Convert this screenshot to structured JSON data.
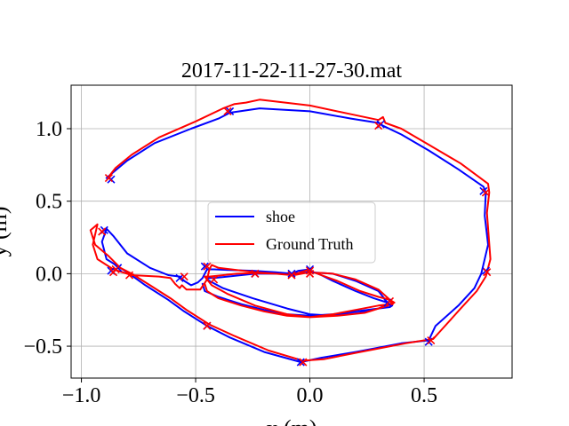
{
  "chart_data": {
    "type": "line",
    "title": "2017-11-22-11-27-30.mat",
    "xlabel": "x (m)",
    "ylabel": "y (m)",
    "xlim": [
      -1.045,
      0.885
    ],
    "ylim": [
      -0.72,
      1.3
    ],
    "grid": true,
    "legend_position": "center",
    "x_ticks": [
      -1.0,
      -0.5,
      0.0,
      0.5
    ],
    "x_tick_labels": [
      "−1.0",
      "−0.5",
      "0.0",
      "0.5"
    ],
    "y_ticks": [
      -0.5,
      0.0,
      0.5,
      1.0
    ],
    "y_tick_labels": [
      "−0.5",
      "0.0",
      "0.5",
      "1.0"
    ],
    "series": [
      {
        "name": "shoe",
        "color": "#0000ff",
        "x": [
          -0.89,
          -0.86,
          -0.8,
          -0.68,
          -0.52,
          -0.4,
          -0.35,
          -0.22,
          0.0,
          0.18,
          0.3,
          0.32,
          0.4,
          0.52,
          0.65,
          0.76,
          0.77,
          0.765,
          0.78,
          0.75,
          0.72,
          0.65,
          0.55,
          0.52,
          0.4,
          0.2,
          0.05,
          -0.04,
          -0.2,
          -0.35,
          -0.45,
          -0.55,
          -0.62,
          -0.72,
          -0.8,
          -0.84,
          -0.89,
          -0.91,
          -0.89,
          -0.86,
          -0.8,
          -0.7,
          -0.62,
          -0.57,
          -0.55,
          -0.52,
          -0.49,
          -0.47,
          -0.46,
          -0.45,
          -0.42,
          -0.35,
          -0.25,
          -0.15,
          -0.08,
          0.0,
          0.1,
          0.2,
          0.3,
          0.34,
          0.33,
          0.3,
          0.22,
          0.1,
          0.0,
          -0.1,
          -0.25,
          -0.38,
          -0.44,
          -0.455,
          -0.42,
          -0.3,
          -0.24,
          -0.15,
          -0.08,
          -0.05,
          0.0,
          0.0,
          0.05,
          0.1,
          0.2,
          0.28,
          0.34,
          0.36,
          0.35,
          0.3,
          0.2,
          0.1,
          0.0,
          -0.1,
          -0.2,
          -0.3,
          -0.4,
          -0.46,
          -0.47
        ],
        "y": [
          0.66,
          0.7,
          0.78,
          0.9,
          1.0,
          1.07,
          1.11,
          1.14,
          1.12,
          1.07,
          1.04,
          1.02,
          0.96,
          0.85,
          0.72,
          0.6,
          0.56,
          0.4,
          0.2,
          0.0,
          -0.1,
          -0.22,
          -0.36,
          -0.46,
          -0.48,
          -0.54,
          -0.58,
          -0.61,
          -0.54,
          -0.44,
          -0.36,
          -0.26,
          -0.18,
          -0.08,
          0.01,
          0.05,
          0.1,
          0.22,
          0.31,
          0.26,
          0.14,
          0.04,
          -0.01,
          -0.02,
          -0.05,
          -0.08,
          -0.06,
          -0.03,
          0.0,
          0.03,
          0.03,
          0.025,
          0.02,
          0.01,
          0.0,
          0.01,
          0.0,
          -0.05,
          -0.12,
          -0.2,
          -0.22,
          -0.24,
          -0.27,
          -0.29,
          -0.28,
          -0.24,
          -0.17,
          -0.1,
          -0.05,
          -0.03,
          -0.03,
          -0.01,
          0.0,
          0.0,
          0.0,
          0.02,
          0.03,
          0.02,
          -0.01,
          -0.05,
          -0.12,
          -0.17,
          -0.2,
          -0.22,
          -0.23,
          -0.24,
          -0.26,
          -0.28,
          -0.29,
          -0.28,
          -0.25,
          -0.21,
          -0.16,
          -0.12,
          -0.07
        ]
      },
      {
        "name": "Ground Truth",
        "color": "#ff0000",
        "x": [
          -0.88,
          -0.85,
          -0.78,
          -0.66,
          -0.5,
          -0.38,
          -0.33,
          -0.28,
          -0.22,
          0.0,
          0.18,
          0.3,
          0.32,
          0.33,
          0.4,
          0.52,
          0.66,
          0.78,
          0.785,
          0.775,
          0.79,
          0.77,
          0.73,
          0.66,
          0.58,
          0.54,
          0.42,
          0.22,
          0.06,
          -0.03,
          -0.18,
          -0.33,
          -0.44,
          -0.54,
          -0.61,
          -0.7,
          -0.78,
          -0.83,
          -0.88,
          -0.94,
          -0.96,
          -0.93,
          -0.95,
          -0.93,
          -0.86,
          -0.78,
          -0.66,
          -0.61,
          -0.59,
          -0.57,
          -0.56,
          -0.54,
          -0.48,
          -0.45,
          -0.44,
          -0.43,
          -0.4,
          -0.32,
          -0.24,
          -0.15,
          -0.07,
          0.0,
          0.1,
          0.2,
          0.3,
          0.35,
          0.36,
          0.32,
          0.24,
          0.12,
          0.0,
          -0.1,
          -0.24,
          -0.36,
          -0.43,
          -0.46,
          -0.44,
          -0.32,
          -0.24,
          -0.15,
          -0.08,
          -0.04,
          0.0,
          0.0,
          0.05,
          0.12,
          0.22,
          0.3,
          0.35,
          0.37,
          0.35,
          0.3,
          0.2,
          0.1,
          0.0,
          -0.1,
          -0.2,
          -0.3,
          -0.4,
          -0.45,
          -0.46
        ],
        "y": [
          0.67,
          0.73,
          0.82,
          0.94,
          1.05,
          1.14,
          1.17,
          1.18,
          1.2,
          1.16,
          1.1,
          1.06,
          1.08,
          1.04,
          1.0,
          0.89,
          0.76,
          0.62,
          0.56,
          0.42,
          0.1,
          -0.02,
          -0.12,
          -0.24,
          -0.38,
          -0.45,
          -0.48,
          -0.54,
          -0.59,
          -0.6,
          -0.53,
          -0.43,
          -0.35,
          -0.25,
          -0.17,
          -0.08,
          0.0,
          0.04,
          0.12,
          0.2,
          0.3,
          0.34,
          0.2,
          0.1,
          0.03,
          -0.01,
          -0.02,
          -0.03,
          -0.07,
          -0.1,
          -0.08,
          -0.11,
          -0.11,
          -0.04,
          0.03,
          0.06,
          0.04,
          0.025,
          0.01,
          0.0,
          -0.01,
          0.01,
          0.0,
          -0.04,
          -0.11,
          -0.18,
          -0.21,
          -0.23,
          -0.27,
          -0.29,
          -0.3,
          -0.28,
          -0.22,
          -0.14,
          -0.08,
          -0.02,
          -0.02,
          0.0,
          0.005,
          0.0,
          -0.01,
          0.01,
          0.03,
          0.02,
          -0.01,
          -0.05,
          -0.12,
          -0.16,
          -0.18,
          -0.2,
          -0.21,
          -0.22,
          -0.25,
          -0.28,
          -0.3,
          -0.29,
          -0.26,
          -0.22,
          -0.17,
          -0.12,
          -0.07
        ]
      }
    ],
    "markers": [
      {
        "series": "shoe",
        "color": "#0000ff",
        "x": [
          -0.87,
          -0.35,
          0.31,
          0.76,
          0.77,
          0.52,
          -0.04,
          -0.45,
          -0.87,
          -0.9,
          -0.84,
          -0.57,
          -0.46,
          -0.24,
          -0.08,
          0.0,
          0.34
        ],
        "y": [
          0.65,
          1.12,
          1.03,
          0.57,
          0.02,
          -0.47,
          -0.61,
          -0.36,
          0.02,
          0.3,
          0.04,
          -0.03,
          0.05,
          0.0,
          0.0,
          0.03,
          -0.2
        ]
      },
      {
        "series": "Ground Truth",
        "color": "#ff0000",
        "x": [
          -0.88,
          -0.36,
          0.3,
          0.77,
          0.775,
          0.53,
          -0.03,
          -0.45,
          -0.86,
          -0.91,
          -0.85,
          -0.79,
          -0.55,
          -0.45,
          -0.42,
          -0.24,
          -0.08,
          0.0,
          0.0,
          0.35
        ],
        "y": [
          0.66,
          1.12,
          1.02,
          0.56,
          0.01,
          -0.46,
          -0.61,
          -0.36,
          0.01,
          0.29,
          0.03,
          -0.01,
          -0.02,
          0.05,
          -0.04,
          0.0,
          -0.01,
          0.02,
          0.0,
          -0.19
        ]
      }
    ]
  }
}
